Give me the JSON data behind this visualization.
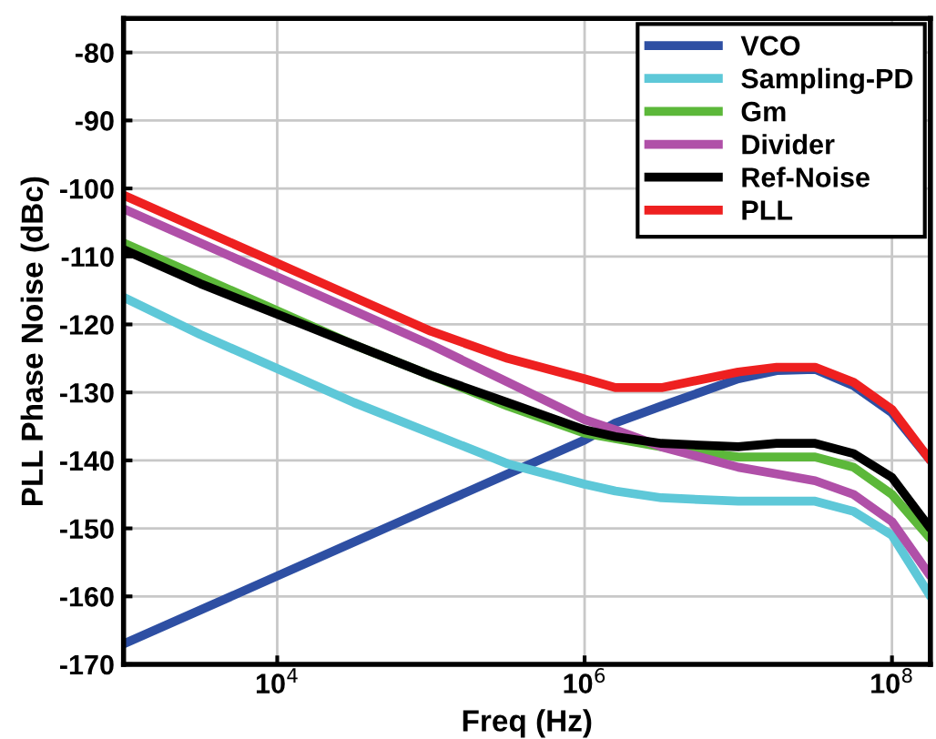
{
  "chart_data": {
    "type": "line",
    "xlabel": "Freq (Hz)",
    "ylabel": "PLL Phase Noise (dBc)",
    "log": "x",
    "x": [
      1000,
      3162,
      10000,
      31623,
      100000,
      316228,
      1000000,
      1584893,
      3162278,
      10000000,
      17782794,
      31622777,
      56234133,
      100000000,
      177827941
    ],
    "xlim": [
      1000,
      177827941
    ],
    "xticks": [
      {
        "value": 10000,
        "label": "10$^{4}$"
      },
      {
        "value": 1000000,
        "label": "10$^{6}$"
      },
      {
        "value": 100000000,
        "label": "10$^{8}$"
      }
    ],
    "ylim": [
      -170,
      -75
    ],
    "yticks": [
      -170,
      -160,
      -150,
      -140,
      -130,
      -120,
      -110,
      -100,
      -90,
      -80
    ],
    "grid": true,
    "legend": "top right",
    "line_style": "solid",
    "marker": "none",
    "series": [
      {
        "name": "VCO",
        "color": "#2e4fa3",
        "values": [
          -167,
          -162,
          -157,
          -152,
          -147,
          -142,
          -137,
          -134.5,
          -132,
          -128,
          -126.8,
          -126.6,
          -129,
          -133,
          -140
        ]
      },
      {
        "name": "Sampling-PD",
        "color": "#5ec8d8",
        "values": [
          -116,
          -121.5,
          -126.5,
          -131.5,
          -136,
          -140.5,
          -143.5,
          -144.5,
          -145.5,
          -146,
          -146,
          -146,
          -147.5,
          -151,
          -160
        ]
      },
      {
        "name": "Gm",
        "color": "#5cb83a",
        "values": [
          -108,
          -113,
          -118,
          -123,
          -127.5,
          -132,
          -136,
          -136.8,
          -138,
          -139.5,
          -139.5,
          -139.5,
          -141,
          -145,
          -151.5
        ]
      },
      {
        "name": "Divider",
        "color": "#b050a8",
        "values": [
          -103,
          -108,
          -113,
          -118,
          -123,
          -128.5,
          -134,
          -135.5,
          -138,
          -141,
          -142,
          -143,
          -145,
          -149,
          -157
        ]
      },
      {
        "name": "Ref-Noise",
        "color": "#000000",
        "values": [
          -109,
          -114,
          -118.5,
          -123,
          -127.5,
          -131.5,
          -135.5,
          -136.5,
          -137.5,
          -138,
          -137.5,
          -137.5,
          -139,
          -142.5,
          -150
        ]
      },
      {
        "name": "PLL",
        "color": "#ee2020",
        "values": [
          -101,
          -106,
          -111,
          -116,
          -121,
          -125,
          -128,
          -129.3,
          -129.3,
          -127,
          -126.3,
          -126.3,
          -128.5,
          -132.5,
          -140
        ]
      }
    ]
  }
}
